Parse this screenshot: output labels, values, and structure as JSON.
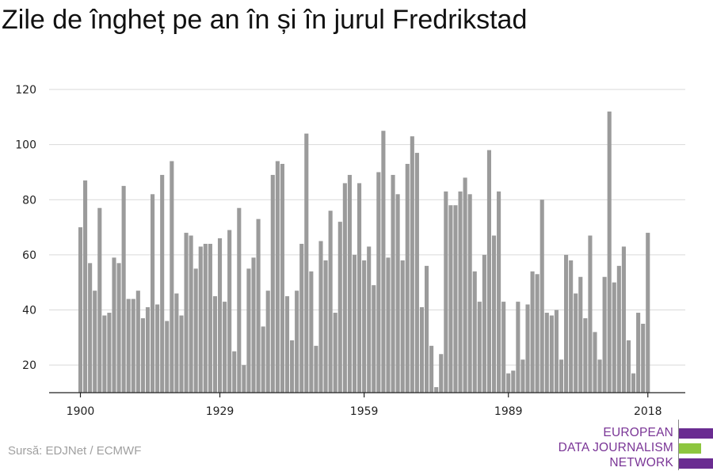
{
  "title": "Zile de îngheț pe an în și în jurul Fredrikstad",
  "source": "Sursă: EDJNet / ECMWF",
  "logo": {
    "lines": [
      "EUROPEAN",
      "DATA JOURNALISM",
      "NETWORK"
    ],
    "colors": {
      "text": "#7a3596",
      "purple": "#6a2c91",
      "green": "#8dc63f"
    }
  },
  "chart_data": {
    "type": "bar",
    "title": "Zile de îngheț pe an în și în jurul Fredrikstad",
    "xlabel": "",
    "ylabel": "",
    "ylim": [
      10,
      120
    ],
    "yticks": [
      20,
      40,
      60,
      80,
      100,
      120
    ],
    "xticks": [
      1900,
      1929,
      1959,
      1989,
      2018
    ],
    "bar_color": "#9b9b9b",
    "grid": true,
    "x": [
      1900,
      1901,
      1902,
      1903,
      1904,
      1905,
      1906,
      1907,
      1908,
      1909,
      1910,
      1911,
      1912,
      1913,
      1914,
      1915,
      1916,
      1917,
      1918,
      1919,
      1920,
      1921,
      1922,
      1923,
      1924,
      1925,
      1926,
      1927,
      1928,
      1929,
      1930,
      1931,
      1932,
      1933,
      1934,
      1935,
      1936,
      1937,
      1938,
      1939,
      1940,
      1941,
      1942,
      1943,
      1944,
      1945,
      1946,
      1947,
      1948,
      1949,
      1950,
      1951,
      1952,
      1953,
      1954,
      1955,
      1956,
      1957,
      1958,
      1959,
      1960,
      1961,
      1962,
      1963,
      1964,
      1965,
      1966,
      1967,
      1968,
      1969,
      1970,
      1971,
      1972,
      1973,
      1974,
      1975,
      1976,
      1977,
      1978,
      1979,
      1980,
      1981,
      1982,
      1983,
      1984,
      1985,
      1986,
      1987,
      1988,
      1989,
      1990,
      1991,
      1992,
      1993,
      1994,
      1995,
      1996,
      1997,
      1998,
      1999,
      2000,
      2001,
      2002,
      2003,
      2004,
      2005,
      2006,
      2007,
      2008,
      2009,
      2010,
      2011,
      2012,
      2013,
      2014,
      2015,
      2016,
      2017,
      2018
    ],
    "values": [
      70,
      87,
      57,
      47,
      77,
      38,
      39,
      59,
      57,
      85,
      44,
      44,
      47,
      37,
      41,
      82,
      42,
      89,
      36,
      94,
      46,
      38,
      68,
      67,
      55,
      63,
      64,
      64,
      45,
      66,
      43,
      69,
      25,
      77,
      20,
      55,
      59,
      73,
      34,
      47,
      89,
      94,
      93,
      45,
      29,
      47,
      64,
      104,
      54,
      27,
      65,
      58,
      76,
      39,
      72,
      86,
      89,
      60,
      86,
      58,
      63,
      49,
      90,
      105,
      59,
      89,
      82,
      58,
      93,
      103,
      97,
      41,
      56,
      27,
      12,
      24,
      83,
      78,
      78,
      83,
      88,
      82,
      54,
      43,
      60,
      98,
      67,
      83,
      43,
      17,
      18,
      43,
      22,
      42,
      54,
      53,
      80,
      39,
      38,
      40,
      22,
      60,
      58,
      46,
      52,
      37,
      67,
      32,
      22,
      52,
      112,
      50,
      56,
      63,
      29,
      17,
      39,
      35,
      68
    ]
  }
}
